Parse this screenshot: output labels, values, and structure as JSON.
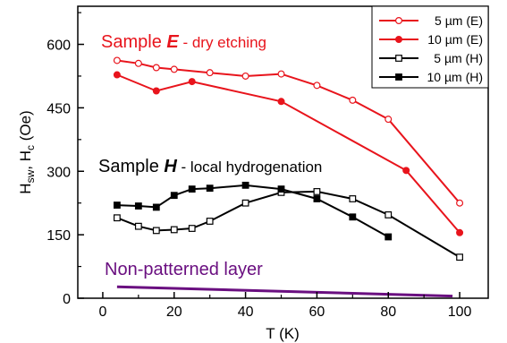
{
  "chart_data": {
    "type": "line",
    "xlabel": "T (K)",
    "ylabel": {
      "main": "H",
      "sub1": "sw",
      "sep": ", H",
      "sub2": "c",
      "unit": " (Oe)"
    },
    "xlim": [
      -7,
      108
    ],
    "ylim": [
      0,
      690
    ],
    "x_ticks": [
      0,
      20,
      40,
      60,
      80,
      100
    ],
    "y_ticks": [
      0,
      150,
      300,
      450,
      600
    ],
    "legend_position": "top-right",
    "grid": false,
    "series": [
      {
        "name": "5 µm (E)",
        "color": "#e8141c",
        "marker": "circle",
        "filled": false,
        "x": [
          4,
          10,
          15,
          20,
          30,
          40,
          50,
          60,
          70,
          80,
          100
        ],
        "y": [
          562,
          555,
          545,
          541,
          533,
          525,
          530,
          503,
          468,
          423,
          225
        ]
      },
      {
        "name": "10 µm (E)",
        "color": "#e8141c",
        "marker": "circle",
        "filled": true,
        "x": [
          4,
          15,
          25,
          50,
          85,
          100
        ],
        "y": [
          528,
          490,
          512,
          465,
          302,
          155
        ]
      },
      {
        "name": "5 µm (H)",
        "color": "#000000",
        "marker": "square",
        "filled": false,
        "x": [
          4,
          10,
          15,
          20,
          25,
          30,
          40,
          50,
          60,
          70,
          80,
          100
        ],
        "y": [
          190,
          170,
          160,
          162,
          165,
          182,
          225,
          250,
          252,
          235,
          197,
          97
        ]
      },
      {
        "name": "10 µm (H)",
        "color": "#000000",
        "marker": "square",
        "filled": true,
        "x": [
          4,
          10,
          15,
          20,
          25,
          30,
          40,
          50,
          60,
          70,
          80
        ],
        "y": [
          220,
          218,
          215,
          243,
          258,
          260,
          267,
          258,
          235,
          192,
          145
        ]
      },
      {
        "name": "Non-patterned layer",
        "color": "#6a0f80",
        "marker": "none",
        "filled": false,
        "x": [
          4,
          98
        ],
        "y": [
          27,
          5
        ]
      }
    ],
    "annotations": {
      "sample_e": {
        "prefix": "Sample ",
        "letter": "E",
        "suffix": " - dry etching",
        "color": "#e8141c"
      },
      "sample_h": {
        "prefix": "Sample ",
        "letter": "H",
        "suffix": " - local hydrogenation",
        "color": "#000000"
      },
      "non_patterned": {
        "text": "Non-patterned layer",
        "color": "#6a0f80"
      }
    }
  }
}
